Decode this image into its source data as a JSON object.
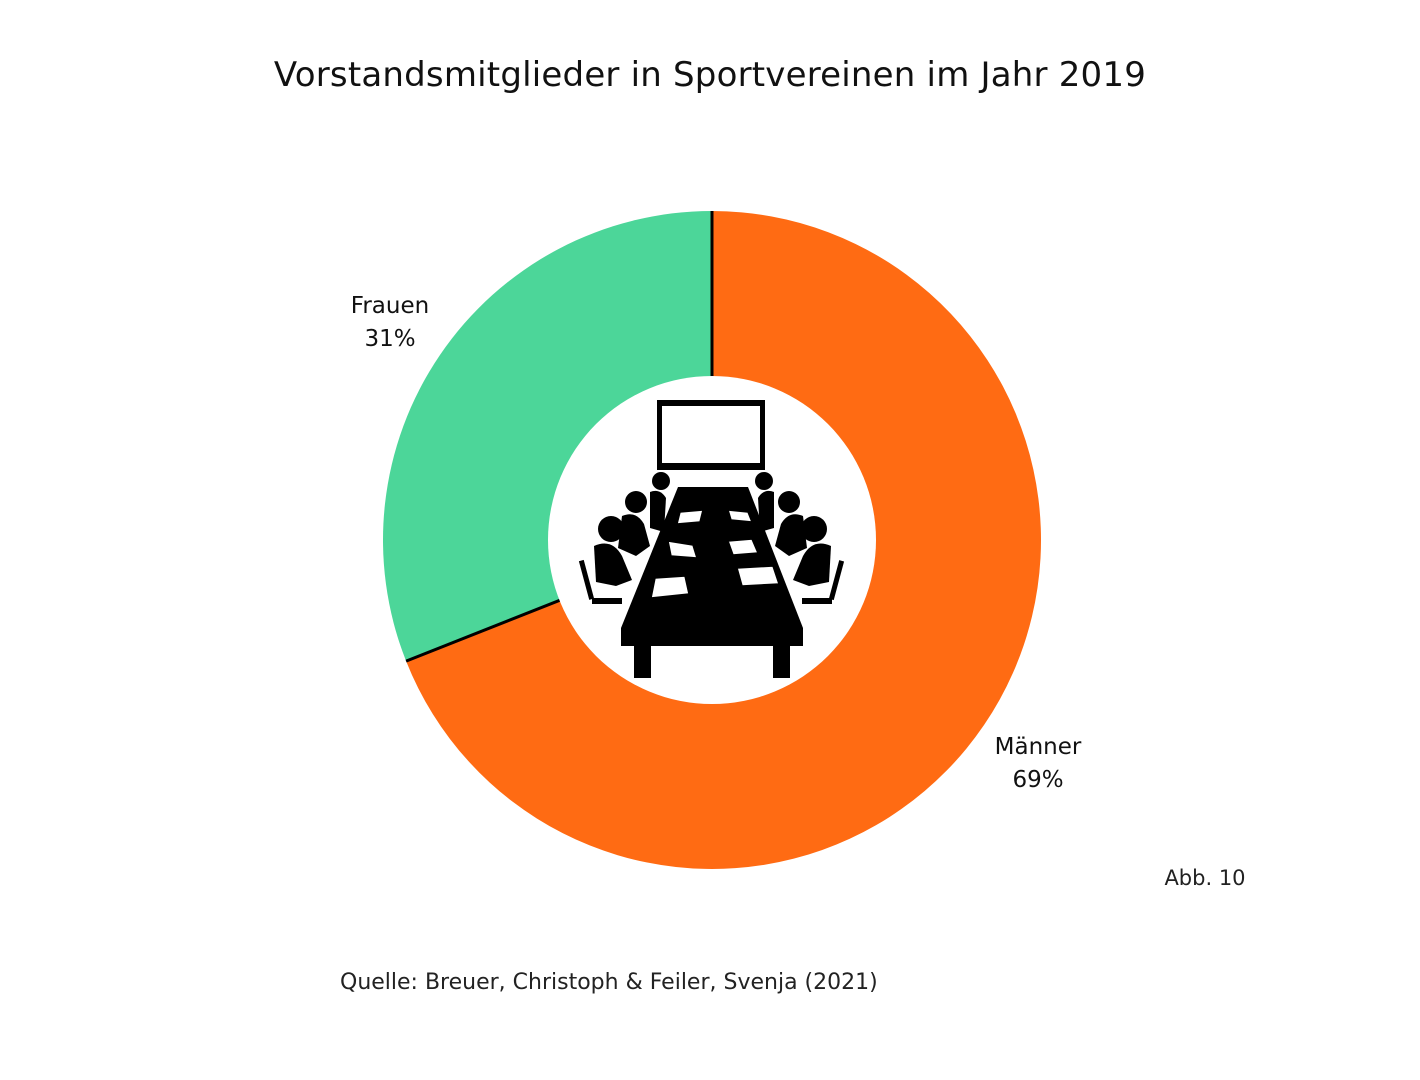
{
  "chart_data": {
    "type": "pie",
    "variant": "donut",
    "title": "Vorstandsmitglieder in Sportvereinen im Jahr 2019",
    "slices": [
      {
        "name": "Frauen",
        "value": 31,
        "label": "31%",
        "color": "#4CD699"
      },
      {
        "name": "Männer",
        "value": 69,
        "label": "69%",
        "color": "#FF6B13"
      }
    ],
    "center_icon": "meeting-table-icon",
    "legend": "none"
  },
  "figure_number": "Abb. 10",
  "source": "Quelle: Breuer, Christoph & Feiler, Svenja (2021)"
}
